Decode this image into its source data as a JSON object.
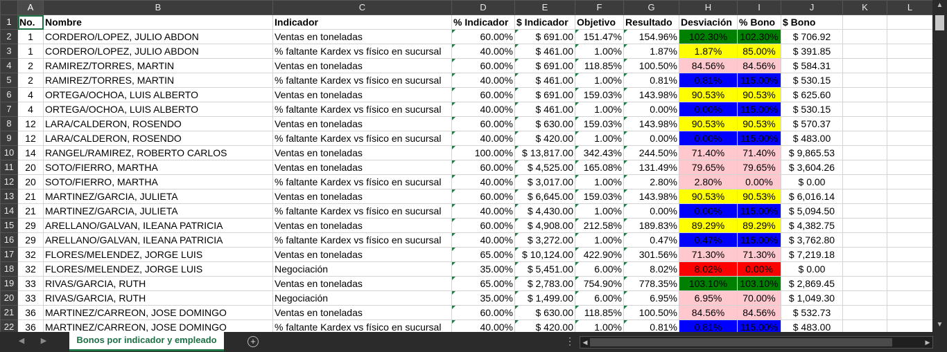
{
  "columns": [
    "A",
    "B",
    "C",
    "D",
    "E",
    "F",
    "G",
    "H",
    "I",
    "J",
    "K",
    "L"
  ],
  "headers": [
    "No.",
    "Nombre",
    "Indicador",
    "% Indicador",
    "$ Indicador",
    "Objetivo",
    "Resultado",
    "Desviación",
    "% Bono",
    "$ Bono",
    "",
    ""
  ],
  "rows": [
    {
      "n": "2",
      "no": "1",
      "nombre": "CORDERO/LOPEZ, JULIO ABDON",
      "ind": "Ventas en toneladas",
      "pind": "60.00%",
      "sind": "$ 691.00",
      "obj": "151.47%",
      "res": "154.96%",
      "desv": "102.30%",
      "pbono": "102.30%",
      "sbono": "$ 706.92",
      "color": "green"
    },
    {
      "n": "3",
      "no": "1",
      "nombre": "CORDERO/LOPEZ, JULIO ABDON",
      "ind": "% faltante Kardex vs físico en sucursal",
      "pind": "40.00%",
      "sind": "$ 461.00",
      "obj": "1.00%",
      "res": "1.87%",
      "desv": "1.87%",
      "pbono": "85.00%",
      "sbono": "$ 391.85",
      "color": "yellow"
    },
    {
      "n": "4",
      "no": "2",
      "nombre": "RAMIREZ/TORRES, MARTIN",
      "ind": "Ventas en toneladas",
      "pind": "60.00%",
      "sind": "$ 691.00",
      "obj": "118.85%",
      "res": "100.50%",
      "desv": "84.56%",
      "pbono": "84.56%",
      "sbono": "$ 584.31",
      "color": "pink"
    },
    {
      "n": "5",
      "no": "2",
      "nombre": "RAMIREZ/TORRES, MARTIN",
      "ind": "% faltante Kardex vs físico en sucursal",
      "pind": "40.00%",
      "sind": "$ 461.00",
      "obj": "1.00%",
      "res": "0.81%",
      "desv": "0.81%",
      "pbono": "115.00%",
      "sbono": "$ 530.15",
      "color": "blue"
    },
    {
      "n": "6",
      "no": "4",
      "nombre": "ORTEGA/OCHOA, LUIS ALBERTO",
      "ind": "Ventas en toneladas",
      "pind": "60.00%",
      "sind": "$ 691.00",
      "obj": "159.03%",
      "res": "143.98%",
      "desv": "90.53%",
      "pbono": "90.53%",
      "sbono": "$ 625.60",
      "color": "yellow"
    },
    {
      "n": "7",
      "no": "4",
      "nombre": "ORTEGA/OCHOA, LUIS ALBERTO",
      "ind": "% faltante Kardex vs físico en sucursal",
      "pind": "40.00%",
      "sind": "$ 461.00",
      "obj": "1.00%",
      "res": "0.00%",
      "desv": "0.00%",
      "pbono": "115.00%",
      "sbono": "$ 530.15",
      "color": "blue"
    },
    {
      "n": "8",
      "no": "12",
      "nombre": "LARA/CALDERON, ROSENDO",
      "ind": "Ventas en toneladas",
      "pind": "60.00%",
      "sind": "$ 630.00",
      "obj": "159.03%",
      "res": "143.98%",
      "desv": "90.53%",
      "pbono": "90.53%",
      "sbono": "$ 570.37",
      "color": "yellow"
    },
    {
      "n": "9",
      "no": "12",
      "nombre": "LARA/CALDERON, ROSENDO",
      "ind": "% faltante Kardex vs físico en sucursal",
      "pind": "40.00%",
      "sind": "$ 420.00",
      "obj": "1.00%",
      "res": "0.00%",
      "desv": "0.00%",
      "pbono": "115.00%",
      "sbono": "$ 483.00",
      "color": "blue"
    },
    {
      "n": "10",
      "no": "14",
      "nombre": "RANGEL/RAMIREZ, ROBERTO CARLOS",
      "ind": "Ventas en toneladas",
      "pind": "100.00%",
      "sind": "$ 13,817.00",
      "obj": "342.43%",
      "res": "244.50%",
      "desv": "71.40%",
      "pbono": "71.40%",
      "sbono": "$ 9,865.53",
      "color": "pink"
    },
    {
      "n": "11",
      "no": "20",
      "nombre": "SOTO/FIERRO, MARTHA",
      "ind": "Ventas en toneladas",
      "pind": "60.00%",
      "sind": "$ 4,525.00",
      "obj": "165.08%",
      "res": "131.49%",
      "desv": "79.65%",
      "pbono": "79.65%",
      "sbono": "$ 3,604.26",
      "color": "pink"
    },
    {
      "n": "12",
      "no": "20",
      "nombre": "SOTO/FIERRO, MARTHA",
      "ind": "% faltante Kardex vs físico en sucursal",
      "pind": "40.00%",
      "sind": "$ 3,017.00",
      "obj": "1.00%",
      "res": "2.80%",
      "desv": "2.80%",
      "pbono": "0.00%",
      "sbono": "$ 0.00",
      "color": "pink"
    },
    {
      "n": "13",
      "no": "21",
      "nombre": "MARTINEZ/GARCIA, JULIETA",
      "ind": "Ventas en toneladas",
      "pind": "60.00%",
      "sind": "$ 6,645.00",
      "obj": "159.03%",
      "res": "143.98%",
      "desv": "90.53%",
      "pbono": "90.53%",
      "sbono": "$ 6,016.14",
      "color": "yellow"
    },
    {
      "n": "14",
      "no": "21",
      "nombre": "MARTINEZ/GARCIA, JULIETA",
      "ind": "% faltante Kardex vs físico en sucursal",
      "pind": "40.00%",
      "sind": "$ 4,430.00",
      "obj": "1.00%",
      "res": "0.00%",
      "desv": "0.00%",
      "pbono": "115.00%",
      "sbono": "$ 5,094.50",
      "color": "blue"
    },
    {
      "n": "15",
      "no": "29",
      "nombre": "ARELLANO/GALVAN, ILEANA PATRICIA",
      "ind": "Ventas en toneladas",
      "pind": "60.00%",
      "sind": "$ 4,908.00",
      "obj": "212.58%",
      "res": "189.83%",
      "desv": "89.29%",
      "pbono": "89.29%",
      "sbono": "$ 4,382.75",
      "color": "yellow"
    },
    {
      "n": "16",
      "no": "29",
      "nombre": "ARELLANO/GALVAN, ILEANA PATRICIA",
      "ind": "% faltante Kardex vs físico en sucursal",
      "pind": "40.00%",
      "sind": "$ 3,272.00",
      "obj": "1.00%",
      "res": "0.47%",
      "desv": "0.47%",
      "pbono": "115.00%",
      "sbono": "$ 3,762.80",
      "color": "blue"
    },
    {
      "n": "17",
      "no": "32",
      "nombre": "FLORES/MELENDEZ, JORGE LUIS",
      "ind": "Ventas en toneladas",
      "pind": "65.00%",
      "sind": "$ 10,124.00",
      "obj": "422.90%",
      "res": "301.56%",
      "desv": "71.30%",
      "pbono": "71.30%",
      "sbono": "$ 7,219.18",
      "color": "pink"
    },
    {
      "n": "18",
      "no": "32",
      "nombre": "FLORES/MELENDEZ, JORGE LUIS",
      "ind": "Negociación",
      "pind": "35.00%",
      "sind": "$ 5,451.00",
      "obj": "6.00%",
      "res": "8.02%",
      "desv": "8.02%",
      "pbono": "0.00%",
      "sbono": "$ 0.00",
      "color": "red"
    },
    {
      "n": "19",
      "no": "33",
      "nombre": "RIVAS/GARCIA, RUTH",
      "ind": "Ventas en toneladas",
      "pind": "65.00%",
      "sind": "$ 2,783.00",
      "obj": "754.90%",
      "res": "778.35%",
      "desv": "103.10%",
      "pbono": "103.10%",
      "sbono": "$ 2,869.45",
      "color": "green"
    },
    {
      "n": "20",
      "no": "33",
      "nombre": "RIVAS/GARCIA, RUTH",
      "ind": "Negociación",
      "pind": "35.00%",
      "sind": "$ 1,499.00",
      "obj": "6.00%",
      "res": "6.95%",
      "desv": "6.95%",
      "pbono": "70.00%",
      "sbono": "$ 1,049.30",
      "color": "pink"
    },
    {
      "n": "21",
      "no": "36",
      "nombre": "MARTINEZ/CARREON, JOSE DOMINGO",
      "ind": "Ventas en toneladas",
      "pind": "60.00%",
      "sind": "$ 630.00",
      "obj": "118.85%",
      "res": "100.50%",
      "desv": "84.56%",
      "pbono": "84.56%",
      "sbono": "$ 532.73",
      "color": "pink"
    },
    {
      "n": "22",
      "no": "36",
      "nombre": "MARTINEZ/CARREON, JOSE DOMINGO",
      "ind": "% faltante Kardex vs físico en sucursal",
      "pind": "40.00%",
      "sind": "$ 420.00",
      "obj": "1.00%",
      "res": "0.81%",
      "desv": "0.81%",
      "pbono": "115.00%",
      "sbono": "$ 483.00",
      "color": "blue"
    }
  ],
  "sheet_tab": "Bonos por indicador y empleado",
  "icons": {
    "add_sheet": "plus-circle-icon",
    "scroll_up": "triangle-up-icon",
    "scroll_down": "triangle-down-icon",
    "scroll_left": "triangle-left-icon",
    "scroll_right": "triangle-right-icon",
    "more": "ellipsis-icon"
  },
  "colors": {
    "green": "#008000",
    "yellow": "#ffff00",
    "pink": "#ffc7ce",
    "blue": "#0000ff",
    "red": "#ff0000",
    "accent": "#1e7145"
  }
}
